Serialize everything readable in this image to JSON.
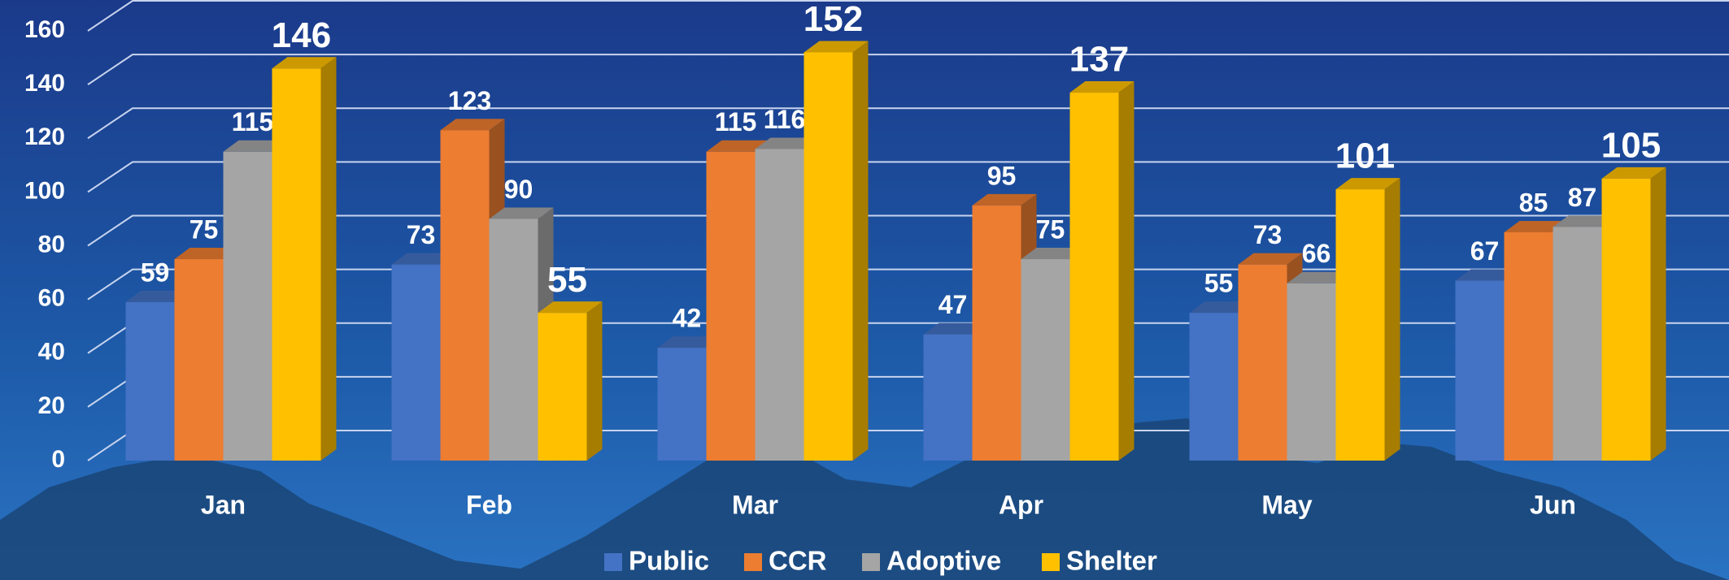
{
  "chart_data": {
    "type": "bar3d",
    "categories": [
      "Jan",
      "Feb",
      "Mar",
      "Apr",
      "May",
      "Jun"
    ],
    "series": [
      {
        "name": "Public",
        "color": "#4472c4",
        "values": [
          59,
          73,
          42,
          47,
          55,
          67
        ]
      },
      {
        "name": "CCR",
        "color": "#ed7d31",
        "values": [
          75,
          123,
          115,
          95,
          73,
          85
        ]
      },
      {
        "name": "Adoptive",
        "color": "#a5a5a5",
        "values": [
          115,
          90,
          116,
          75,
          66,
          87
        ]
      },
      {
        "name": "Shelter",
        "color": "#ffc000",
        "values": [
          146,
          55,
          152,
          137,
          101,
          105
        ]
      }
    ],
    "ylim": [
      0,
      160
    ],
    "yticks": [
      0,
      20,
      40,
      60,
      80,
      100,
      120,
      140,
      160
    ],
    "grid": true,
    "legend": "bottom"
  }
}
